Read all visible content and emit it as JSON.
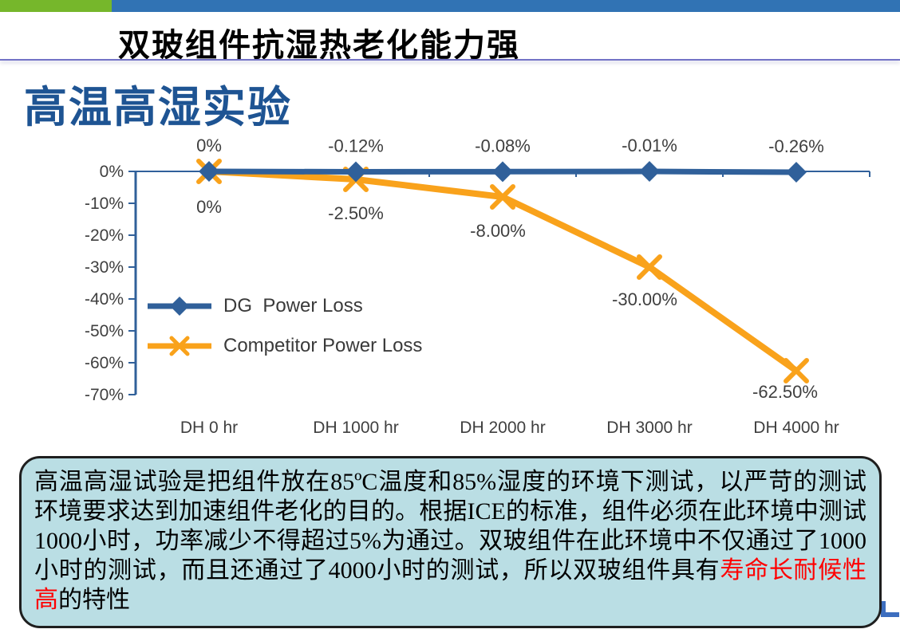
{
  "slide": {
    "header": {
      "title": "双玻组件抗湿热老化能力强"
    },
    "section_title": "高温高湿实验",
    "note": {
      "text_before": "高温高湿试验是把组件放在85ºC温度和85%湿度的环境下测试，以严苛的测试环境要求达到加速组件老化的目的。根据ICE的标准，组件必须在此环境中测试1000小时，功率减少不得超过5%为通过。双玻组件在此环境中不仅通过了1000小时的测试，而且还通过了4000小时的测试，所以双玻组件具有",
      "highlight": "寿命长耐候性高",
      "text_after": "的特性",
      "highlight_color": "#FF0000"
    },
    "colors": {
      "bar-green": "#76B72B",
      "bar-blue": "#3173B4",
      "rule-purple": "#7272C6",
      "section-title-blue": "#1E5493",
      "note-bg": "#BADEE4",
      "note-border": "#1F1F1F",
      "axis-label": "#3F3F3F",
      "logo-blue": "#3D6EBF"
    }
  },
  "chart_data": {
    "type": "line",
    "title": "高温高湿实验",
    "categories": [
      "DH 0 hr",
      "DH 1000 hr",
      "DH 2000 hr",
      "DH 3000 hr",
      "DH 4000 hr"
    ],
    "series": [
      {
        "name": "DG  Power Loss",
        "color": "#30609A",
        "marker": "diamond",
        "values": [
          0,
          -0.12,
          -0.08,
          -0.01,
          -0.26
        ],
        "data_labels": [
          "0%",
          "-0.12%",
          "-0.08%",
          "-0.01%",
          "-0.26%"
        ],
        "label_position": "above"
      },
      {
        "name": "Competitor Power Loss",
        "color": "#F9A21B",
        "marker": "x",
        "values": [
          0,
          -2.5,
          -8.0,
          -30.0,
          -62.5
        ],
        "data_labels": [
          "0%",
          "-2.50%",
          "-8.00%",
          "-30.00%",
          "-62.50%"
        ],
        "label_position": "below"
      }
    ],
    "y_axis": {
      "ticks": [
        "0%",
        "-10%",
        "-20%",
        "-30%",
        "-40%",
        "-50%",
        "-60%",
        "-70%"
      ],
      "min": -70,
      "max": 0,
      "step": 10
    },
    "grid": false,
    "legend_position": "inside-left"
  }
}
